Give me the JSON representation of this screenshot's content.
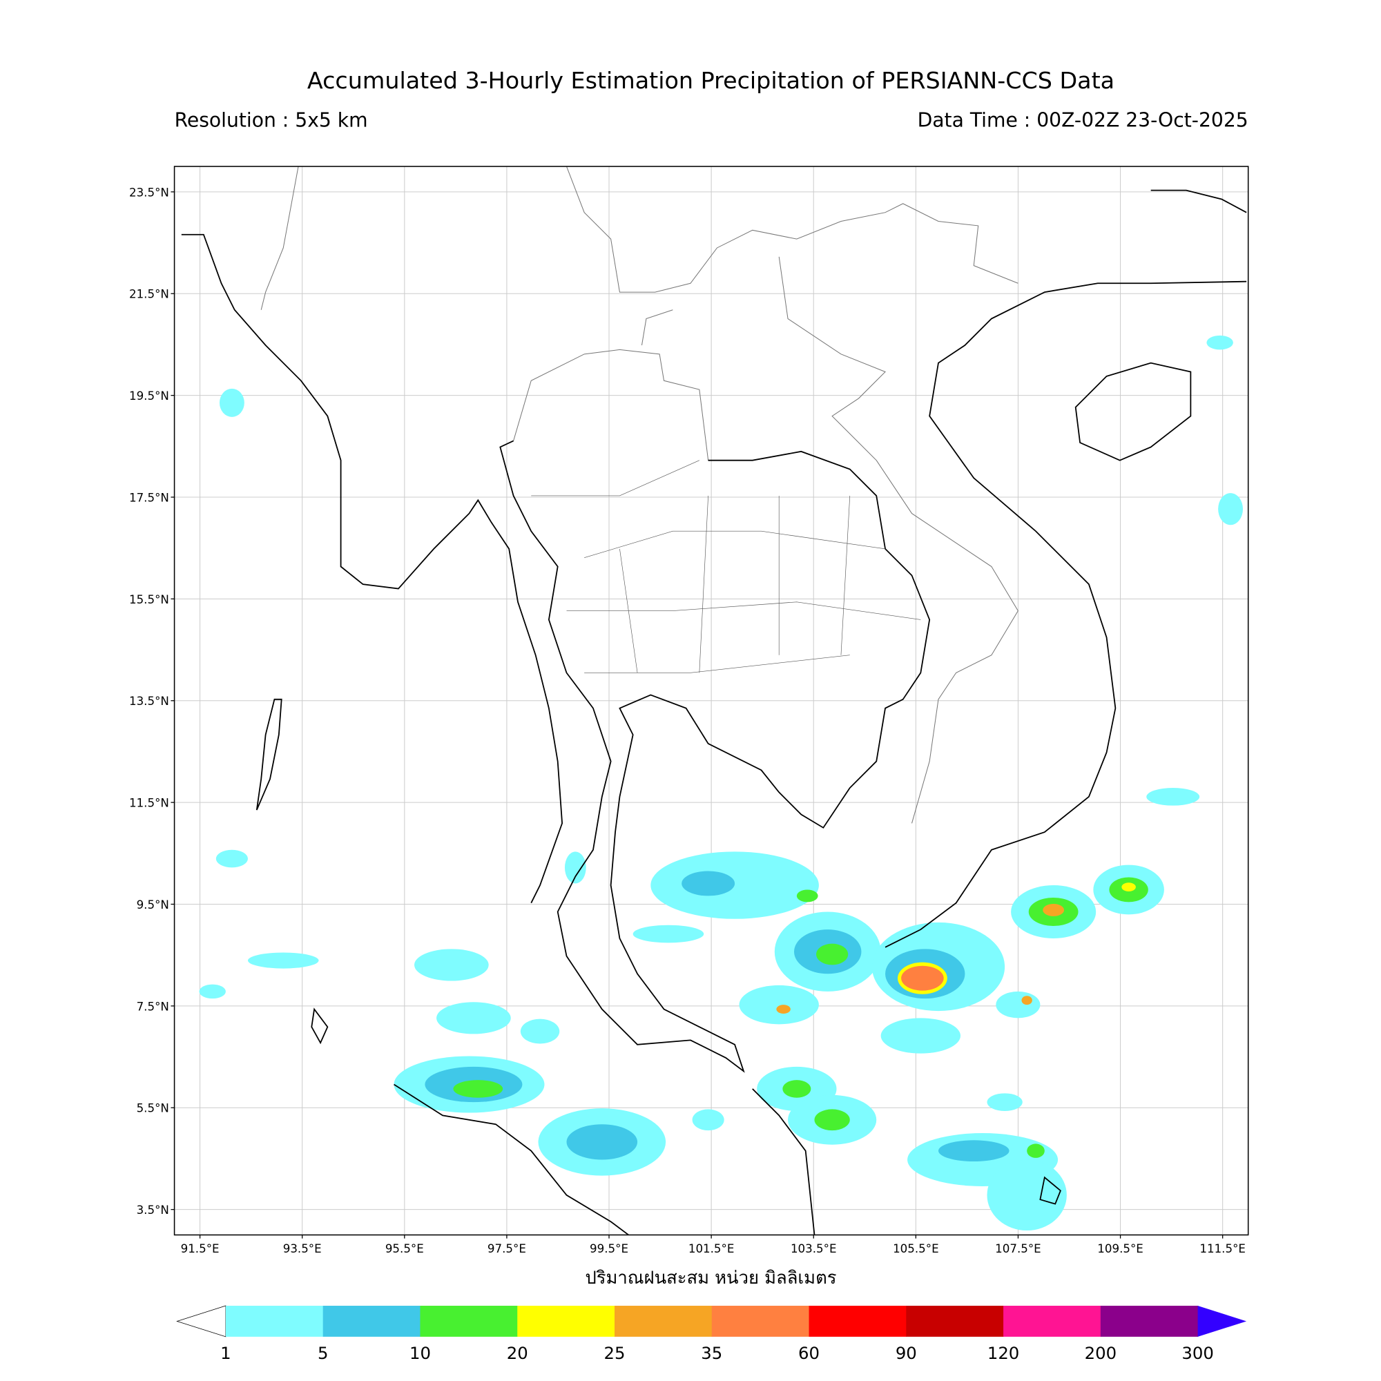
{
  "header": {
    "title": "Accumulated 3-Hourly Estimation Precipitation of PERSIANN-CCS Data",
    "resolution": "Resolution : 5x5 km",
    "data_time": "Data Time : 00Z-02Z 23-Oct-2025"
  },
  "map": {
    "lon_lim": [
      91,
      112
    ],
    "lat_lim": [
      3,
      24
    ],
    "lat_ticks": [
      {
        "value": 23.5,
        "label": "23.5°N"
      },
      {
        "value": 21.5,
        "label": "21.5°N"
      },
      {
        "value": 19.5,
        "label": "19.5°N"
      },
      {
        "value": 17.5,
        "label": "17.5°N"
      },
      {
        "value": 15.5,
        "label": "15.5°N"
      },
      {
        "value": 13.5,
        "label": "13.5°N"
      },
      {
        "value": 11.5,
        "label": "11.5°N"
      },
      {
        "value": 9.5,
        "label": "9.5°N"
      },
      {
        "value": 7.5,
        "label": "7.5°N"
      },
      {
        "value": 5.5,
        "label": "5.5°N"
      },
      {
        "value": 3.5,
        "label": "3.5°N"
      }
    ],
    "lon_ticks": [
      {
        "value": 91.5,
        "label": "91.5°E"
      },
      {
        "value": 93.5,
        "label": "93.5°E"
      },
      {
        "value": 95.5,
        "label": "95.5°E"
      },
      {
        "value": 97.5,
        "label": "97.5°E"
      },
      {
        "value": 99.5,
        "label": "99.5°E"
      },
      {
        "value": 101.5,
        "label": "101.5°E"
      },
      {
        "value": 103.5,
        "label": "103.5°E"
      },
      {
        "value": 105.5,
        "label": "105.5°E"
      },
      {
        "value": 107.5,
        "label": "107.5°E"
      },
      {
        "value": 109.5,
        "label": "109.5°E"
      },
      {
        "value": 111.5,
        "label": "111.5°E"
      }
    ]
  },
  "legend": {
    "title": "ปริมาณฝนสะสม หน่วย มิลลิเมตร",
    "levels": [
      1,
      5,
      10,
      20,
      25,
      35,
      60,
      90,
      120,
      200,
      300
    ],
    "colors": [
      "#7ffcff",
      "#40c8e8",
      "#48f030",
      "#ffff00",
      "#f6a524",
      "#ff8040",
      "#ff0000",
      "#c80000",
      "#ff1493",
      "#8b008b"
    ],
    "under_color": "#ffffff",
    "over_color": "#3300ff"
  }
}
